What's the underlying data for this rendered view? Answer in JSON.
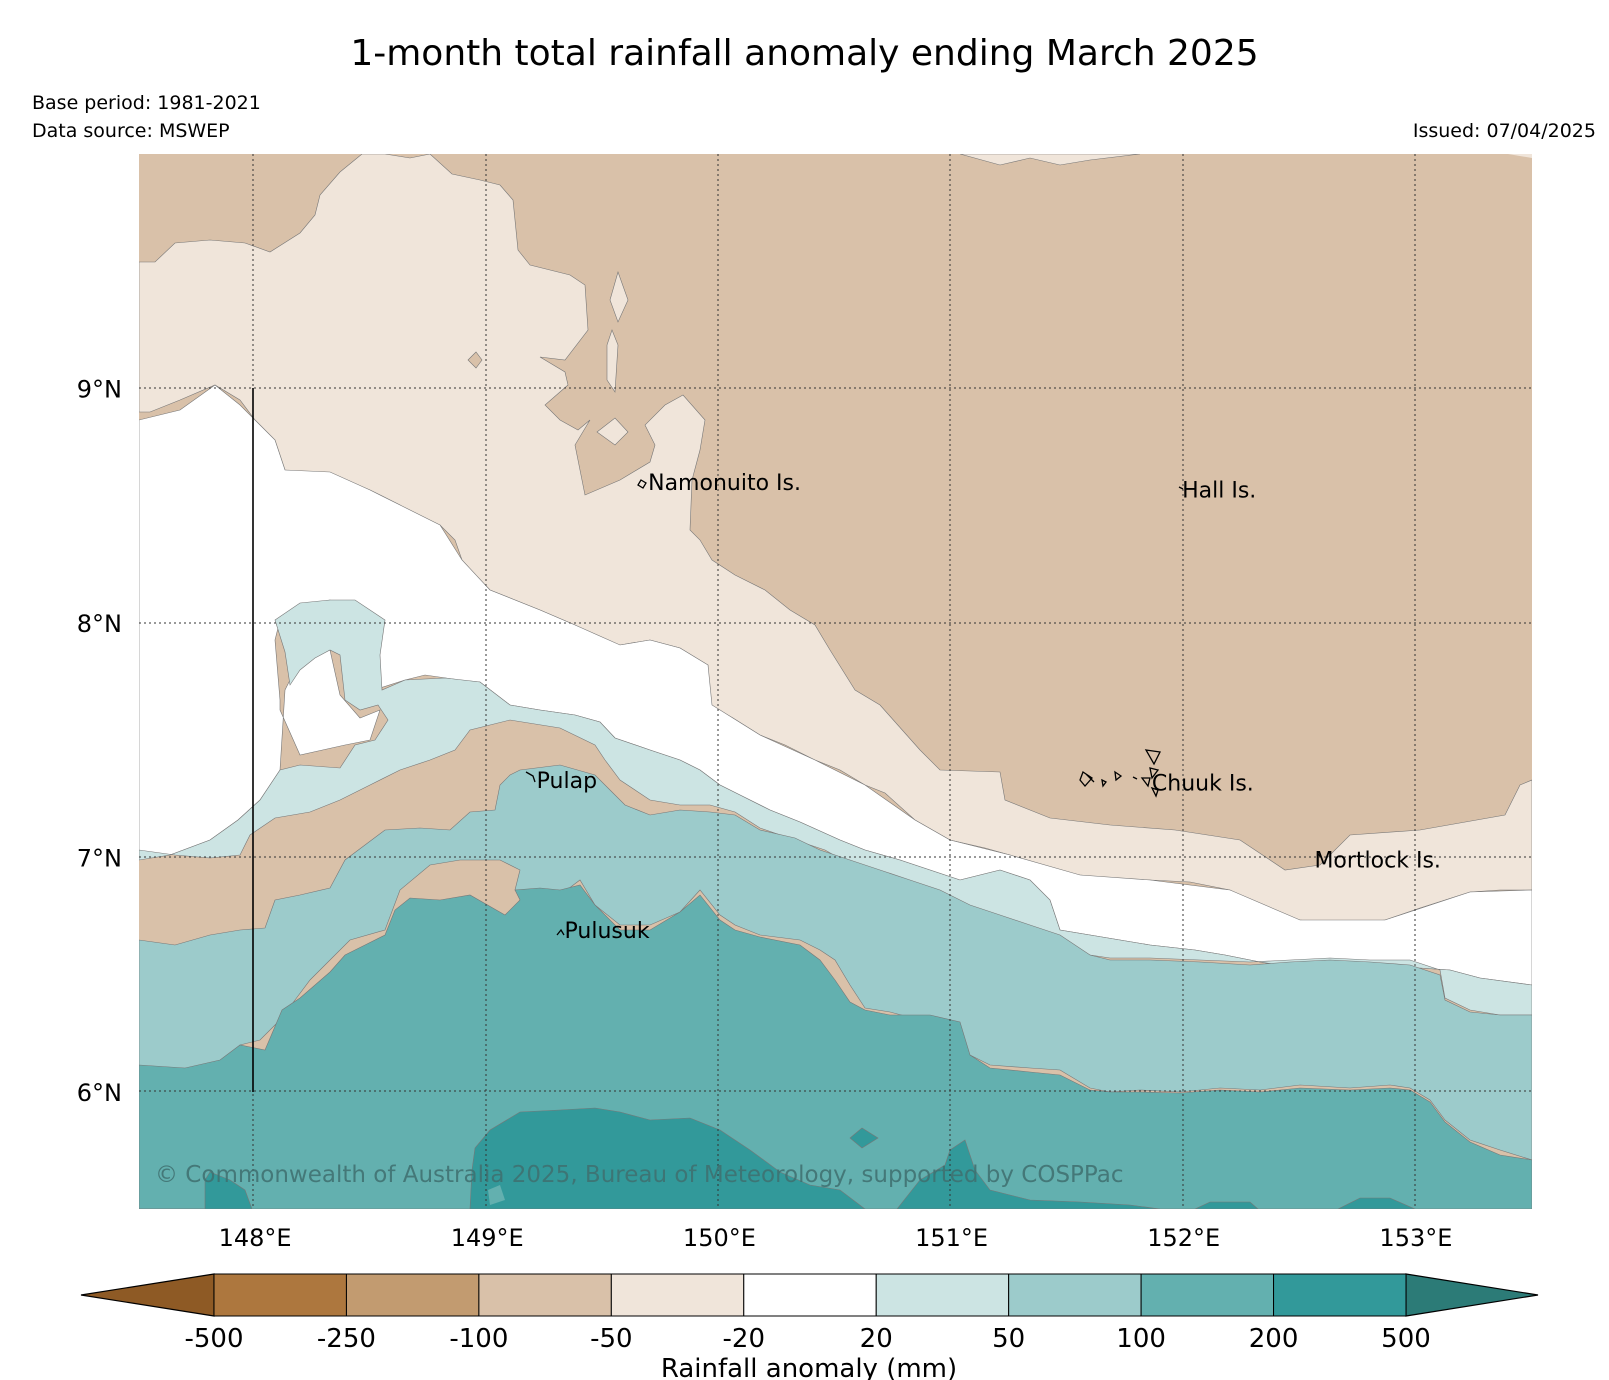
{
  "title": "1-month total rainfall anomaly ending March 2025",
  "base_period": "Base period: 1981-2021",
  "data_source": "Data source: MSWEP",
  "issued": "Issued: 07/04/2025",
  "copyright": "© Commonwealth of Australia 2025, Bureau of Meteorology, supported by COSPPac",
  "map": {
    "lon_range": [
      147.5,
      153.5
    ],
    "lat_range": [
      5.5,
      10.0
    ],
    "lon_ticks": [
      {
        "value": 148,
        "label": "148°E"
      },
      {
        "value": 149,
        "label": "149°E"
      },
      {
        "value": 150,
        "label": "150°E"
      },
      {
        "value": 151,
        "label": "151°E"
      },
      {
        "value": 152,
        "label": "152°E"
      },
      {
        "value": 153,
        "label": "153°E"
      }
    ],
    "lat_ticks": [
      {
        "value": 9,
        "label": "9°N"
      },
      {
        "value": 8,
        "label": "8°N"
      },
      {
        "value": 7,
        "label": "7°N"
      },
      {
        "value": 6,
        "label": "6°N"
      }
    ],
    "places": [
      {
        "name": "Namonuito Is.",
        "lon": 149.68,
        "lat": 8.6
      },
      {
        "name": "Hall Is.",
        "lon": 151.98,
        "lat": 8.57
      },
      {
        "name": "Pulap",
        "lon": 149.2,
        "lat": 7.33
      },
      {
        "name": "Chuuk Is.",
        "lon": 151.85,
        "lat": 7.32
      },
      {
        "name": "Mortlock Is.",
        "lon": 152.55,
        "lat": 6.99
      },
      {
        "name": "Pulusuk",
        "lon": 149.32,
        "lat": 6.69
      }
    ]
  },
  "colorbar": {
    "label": "Rainfall anomaly (mm)",
    "ticks": [
      "-500",
      "-250",
      "-100",
      "-50",
      "-20",
      "20",
      "50",
      "100",
      "200",
      "500"
    ],
    "low_extend_color": "#8e5a25",
    "high_extend_color": "#2c7b77",
    "colors": [
      "#ad773e",
      "#c29b70",
      "#d9c1a9",
      "#f0e5da",
      "#ffffff",
      "#cce4e3",
      "#9ccbcb",
      "#63b0af",
      "#32999a"
    ]
  }
}
